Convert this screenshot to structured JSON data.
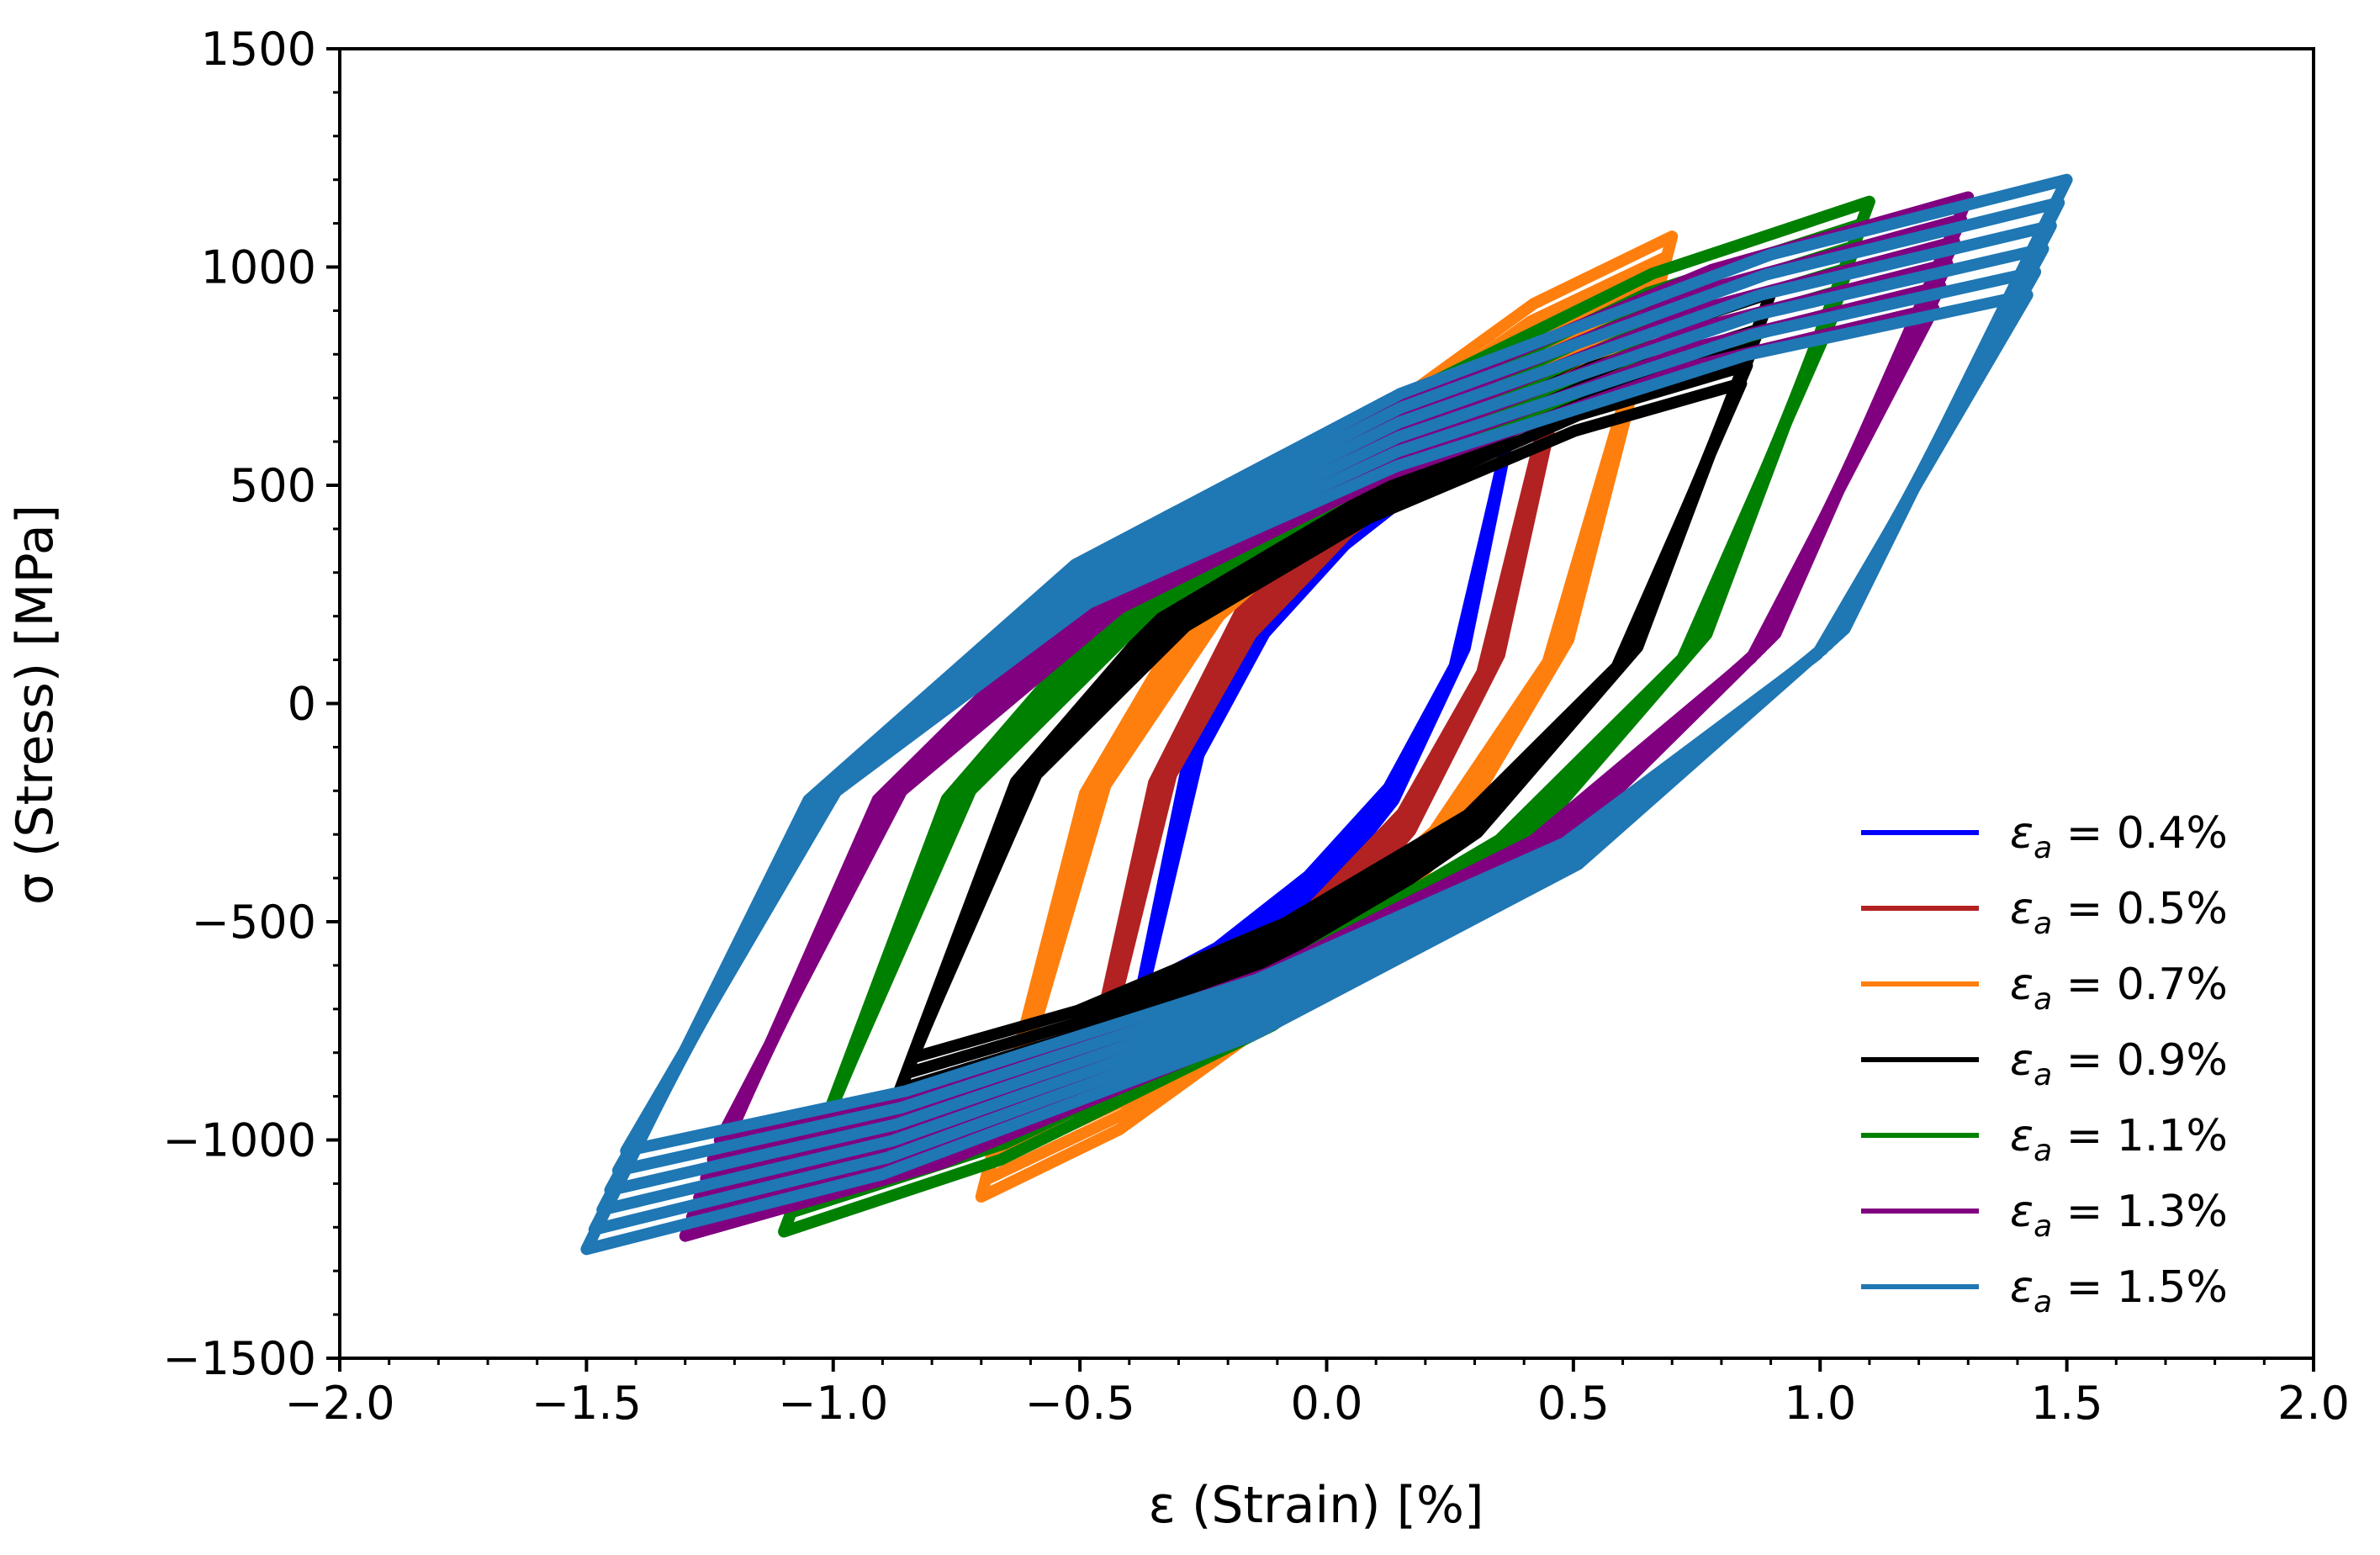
{
  "chart_data": {
    "type": "line",
    "title": "",
    "xlabel": "ε (Strain) [%]",
    "ylabel": "σ (Stress) [MPa]",
    "xlim": [
      -2.0,
      2.0
    ],
    "ylim": [
      -1500,
      1500
    ],
    "x_ticks": [
      -2.0,
      -1.5,
      -1.0,
      -0.5,
      0.0,
      0.5,
      1.0,
      1.5,
      2.0
    ],
    "x_tick_labels": [
      "−2.0",
      "−1.5",
      "−1.0",
      "−0.5",
      "0.0",
      "0.5",
      "1.0",
      "1.5",
      "2.0"
    ],
    "y_ticks": [
      -1500,
      -1000,
      -500,
      0,
      500,
      1000,
      1500
    ],
    "y_tick_labels": [
      "−1500",
      "−1000",
      "−500",
      "0",
      "500",
      "1000",
      "1500"
    ],
    "grid": false,
    "legend_position": "lower-right",
    "series": [
      {
        "name": "εa = 0.4%",
        "sym": "ε",
        "sub": "a",
        "value": " = 0.4%",
        "color": "#0000ff",
        "amplitude": 0.4,
        "max_stress": 790,
        "min_stress": -790,
        "knee_offset": 120,
        "thickness": 0.03
      },
      {
        "name": "εa = 0.5%",
        "sym": "ε",
        "sub": "a",
        "value": " = 0.5%",
        "color": "#b22222",
        "amplitude": 0.5,
        "max_stress": 880,
        "min_stress": -950,
        "knee_offset": 150,
        "thickness": 0.05
      },
      {
        "name": "εa = 0.7%",
        "sym": "ε",
        "sub": "a",
        "value": " = 0.7%",
        "color": "#ff7f0e",
        "amplitude": 0.7,
        "max_stress": 1070,
        "min_stress": -1130,
        "knee_offset": 170,
        "thickness": 0.06
      },
      {
        "name": "εa = 0.9%",
        "sym": "ε",
        "sub": "a",
        "value": " = 0.9%",
        "color": "#000000",
        "amplitude": 0.9,
        "max_stress": 940,
        "min_stress": -990,
        "knee_offset": 260,
        "thickness": 0.06
      },
      {
        "name": "εa = 1.1%",
        "sym": "ε",
        "sub": "a",
        "value": " = 1.1%",
        "color": "#008000",
        "amplitude": 1.1,
        "max_stress": 1150,
        "min_stress": -1210,
        "knee_offset": 330,
        "thickness": 0.07
      },
      {
        "name": "εa = 1.3%",
        "sym": "ε",
        "sub": "a",
        "value": " = 1.3%",
        "color": "#800080",
        "amplitude": 1.3,
        "max_stress": 1160,
        "min_stress": -1220,
        "knee_offset": 330,
        "thickness": 0.07
      },
      {
        "name": "εa = 1.5%",
        "sym": "ε",
        "sub": "a",
        "value": " = 1.5%",
        "color": "#1f77b4",
        "amplitude": 1.5,
        "max_stress": 1200,
        "min_stress": -1250,
        "knee_offset": 320,
        "thickness": 0.08
      }
    ]
  }
}
